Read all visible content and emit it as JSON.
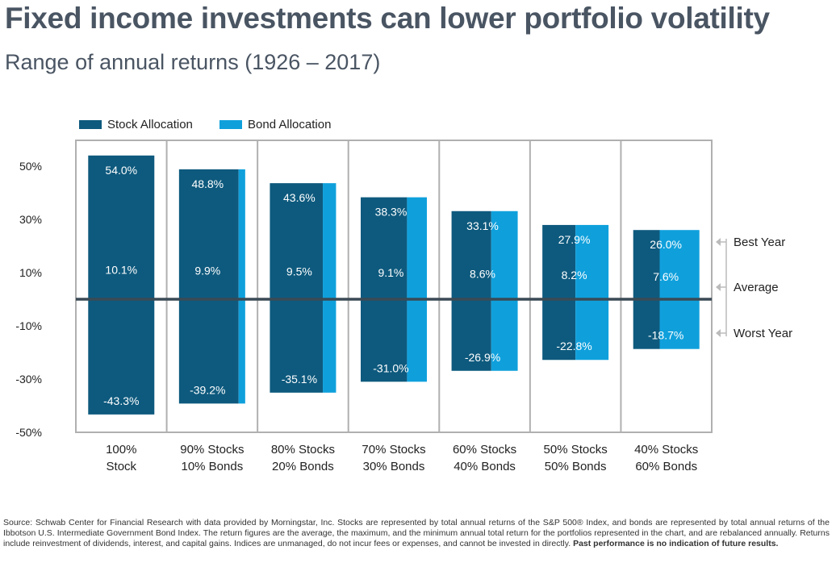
{
  "title": "Fixed income investments can lower portfolio volatility",
  "subtitle": "Range of annual returns (1926 – 2017)",
  "legend": [
    {
      "label": "Stock Allocation",
      "color": "#0e5a7e"
    },
    {
      "label": "Bond Allocation",
      "color": "#0fa0dc"
    }
  ],
  "footer": {
    "text": "Source: Schwab Center for Financial Research with data provided by Morningstar, Inc. Stocks are represented by total annual returns of the S&P 500® Index, and bonds are represented by total annual returns of the Ibbotson U.S. Intermediate Government Bond Index. The return figures are the average, the maximum, and the minimum annual total return for the portfolios represented in the chart, and are rebalanced annually. Returns include reinvestment of dividends, interest, and capital gains. Indices are unmanaged, do not incur fees or expenses, and cannot be invested in directly.",
    "bold": "Past performance is no indication of future results."
  },
  "chart_data": {
    "type": "bar",
    "categories": [
      [
        "100%",
        "Stock"
      ],
      [
        "90% Stocks",
        "10% Bonds"
      ],
      [
        "80% Stocks",
        "20% Bonds"
      ],
      [
        "70% Stocks",
        "30% Bonds"
      ],
      [
        "60% Stocks",
        "40% Bonds"
      ],
      [
        "50% Stocks",
        "50% Bonds"
      ],
      [
        "40% Stocks",
        "60% Bonds"
      ]
    ],
    "stock_share": [
      1.0,
      0.9,
      0.8,
      0.7,
      0.6,
      0.5,
      0.4
    ],
    "series": [
      {
        "name": "Best Year",
        "values": [
          54.0,
          48.8,
          43.6,
          38.3,
          33.1,
          27.9,
          26.0
        ],
        "labels": [
          "54.0%",
          "48.8%",
          "43.6%",
          "38.3%",
          "33.1%",
          "27.9%",
          "26.0%"
        ]
      },
      {
        "name": "Average",
        "values": [
          10.1,
          9.9,
          9.5,
          9.1,
          8.6,
          8.2,
          7.6
        ],
        "labels": [
          "10.1%",
          "9.9%",
          "9.5%",
          "9.1%",
          "8.6%",
          "8.2%",
          "7.6%"
        ]
      },
      {
        "name": "Worst Year",
        "values": [
          -43.3,
          -39.2,
          -35.1,
          -31.0,
          -26.9,
          -22.8,
          -18.7
        ],
        "labels": [
          "-43.3%",
          "-39.2%",
          "-35.1%",
          "-31.0%",
          "-26.9%",
          "-22.8%",
          "-18.7%"
        ]
      }
    ],
    "yticks": [
      50,
      30,
      10,
      -10,
      -30,
      -50
    ],
    "ytick_labels": [
      "50%",
      "30%",
      "10%",
      "-10%",
      "-30%",
      "-50%"
    ],
    "ylim": [
      -50,
      60
    ],
    "annotations": [
      "Best Year",
      "Average",
      "Worst Year"
    ],
    "colors": {
      "stock": "#0e5a7e",
      "bond": "#0fa0dc",
      "zero_line": "#3a4a55",
      "grid": "#b0b0b0"
    }
  }
}
